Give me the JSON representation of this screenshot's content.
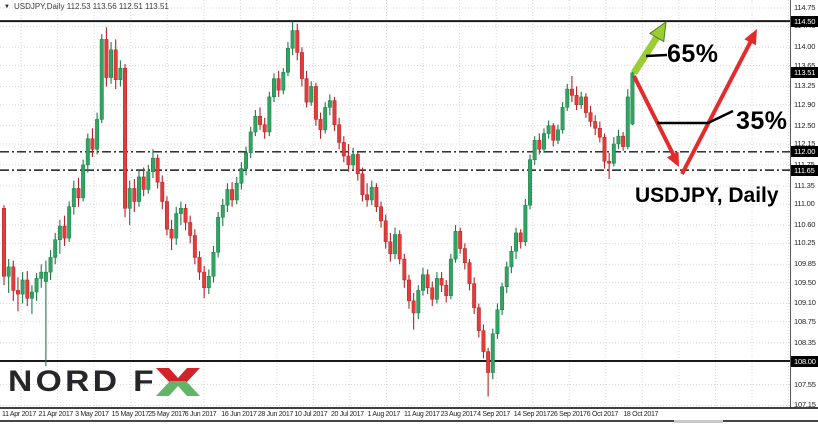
{
  "header": {
    "collapse_icon": "▼",
    "title_text": "USDJPY,Daily  112.53 113.56 112.51 113.51"
  },
  "colors": {
    "bull": "#2fa463",
    "bull_edge": "#1e7a46",
    "bear": "#e43b3b",
    "bear_edge": "#b32424",
    "grid": "#d9d9d9",
    "level_line": "#1a1a1a",
    "box_bg": "#000000",
    "box_text": "#ffffff",
    "bull_arrow": "#9acd32",
    "bull_arrow_edge": "#4e7d1e",
    "bear_arrow": "#e32b2b",
    "annotation": "#000000"
  },
  "annotations": {
    "up_percent": "65%",
    "down_percent": "35%",
    "chart_label": "USDJPY, Daily"
  },
  "logo": {
    "text_main": "NORD F",
    "text_x": "X",
    "red": "#d2232a",
    "green": "#62b566"
  },
  "chart_data": {
    "type": "candlestick",
    "symbol": "USDJPY",
    "timeframe": "Daily",
    "title": "USDJPY, Daily",
    "last_bar": {
      "open": 112.53,
      "high": 113.56,
      "low": 112.51,
      "close": 113.51
    },
    "current_price": 113.51,
    "y_range": [
      107.0,
      114.9
    ],
    "grid": true,
    "y_axis_labels": [
      114.75,
      114.4,
      114.0,
      113.65,
      113.25,
      112.9,
      112.5,
      112.15,
      111.75,
      111.35,
      111.0,
      110.6,
      110.25,
      109.85,
      109.5,
      109.1,
      108.75,
      108.35,
      107.55,
      107.15
    ],
    "x_axis_labels": [
      "11 Apr 2017",
      "21 Apr 2017",
      "3 May 2017",
      "15 May 2017",
      "25 May 2017",
      "6 Jun 2017",
      "16 Jun 2017",
      "28 Jun 2017",
      "10 Jul 2017",
      "20 Jul 2017",
      "1 Aug 2017",
      "11 Aug 2017",
      "23 Aug 2017",
      "4 Sep 2017",
      "14 Sep 2017",
      "26 Sep 2017",
      "6 Oct 2017",
      "18 Oct 2017"
    ],
    "price_lines": [
      {
        "price": 114.5,
        "label": "114.50",
        "style": "solid"
      },
      {
        "price": 113.51,
        "label": "113.51",
        "style": "none"
      },
      {
        "price": 112.0,
        "label": "112.00",
        "style": "dashdot"
      },
      {
        "price": 111.65,
        "label": "111.65",
        "style": "dashdot"
      },
      {
        "price": 108.0,
        "label": "108.00",
        "style": "solid"
      }
    ],
    "candles": [
      [
        110.92,
        110.98,
        109.45,
        109.62
      ],
      [
        109.62,
        109.95,
        109.3,
        109.8
      ],
      [
        109.8,
        109.92,
        109.15,
        109.35
      ],
      [
        109.35,
        109.6,
        108.95,
        109.28
      ],
      [
        109.28,
        109.7,
        109.1,
        109.55
      ],
      [
        109.55,
        109.72,
        109.05,
        109.2
      ],
      [
        109.2,
        109.45,
        108.9,
        109.32
      ],
      [
        109.32,
        109.68,
        109.15,
        109.58
      ],
      [
        109.58,
        109.85,
        109.4,
        109.7
      ],
      [
        109.52,
        109.92,
        107.9,
        109.7
      ],
      [
        109.7,
        110.12,
        109.55,
        109.98
      ],
      [
        109.98,
        110.45,
        109.85,
        110.32
      ],
      [
        110.32,
        110.7,
        110.05,
        110.58
      ],
      [
        110.58,
        110.78,
        110.2,
        110.35
      ],
      [
        110.35,
        111.05,
        110.28,
        110.95
      ],
      [
        110.95,
        111.45,
        110.8,
        111.3
      ],
      [
        111.3,
        111.5,
        110.95,
        111.12
      ],
      [
        111.12,
        111.85,
        111.05,
        111.75
      ],
      [
        111.75,
        112.35,
        111.6,
        112.25
      ],
      [
        112.25,
        112.45,
        111.9,
        112.05
      ],
      [
        112.05,
        112.75,
        111.95,
        112.62
      ],
      [
        112.62,
        114.25,
        112.55,
        114.15
      ],
      [
        114.15,
        114.38,
        113.25,
        113.42
      ],
      [
        113.42,
        114.1,
        113.3,
        113.95
      ],
      [
        113.95,
        114.15,
        113.2,
        113.38
      ],
      [
        113.38,
        113.75,
        113.25,
        113.6
      ],
      [
        113.6,
        113.68,
        110.75,
        110.92
      ],
      [
        110.92,
        111.45,
        110.6,
        111.3
      ],
      [
        111.3,
        111.48,
        110.85,
        111.05
      ],
      [
        111.05,
        111.65,
        110.95,
        111.52
      ],
      [
        111.52,
        111.7,
        111.15,
        111.28
      ],
      [
        111.28,
        111.75,
        111.2,
        111.62
      ],
      [
        111.62,
        112.05,
        111.5,
        111.88
      ],
      [
        111.88,
        111.95,
        111.3,
        111.42
      ],
      [
        111.42,
        111.55,
        110.9,
        111.05
      ],
      [
        111.05,
        111.15,
        110.4,
        110.52
      ],
      [
        110.52,
        110.7,
        110.12,
        110.35
      ],
      [
        110.35,
        110.95,
        110.22,
        110.82
      ],
      [
        110.82,
        111.05,
        110.6,
        110.92
      ],
      [
        110.92,
        111.0,
        110.5,
        110.65
      ],
      [
        110.65,
        110.78,
        110.25,
        110.4
      ],
      [
        110.4,
        110.52,
        109.85,
        109.98
      ],
      [
        109.98,
        110.1,
        109.55,
        109.7
      ],
      [
        109.7,
        109.82,
        109.2,
        109.4
      ],
      [
        109.4,
        109.75,
        109.28,
        109.62
      ],
      [
        109.62,
        110.2,
        109.5,
        110.08
      ],
      [
        110.08,
        110.85,
        109.98,
        110.75
      ],
      [
        110.75,
        111.1,
        110.58,
        110.98
      ],
      [
        110.98,
        111.4,
        110.85,
        111.28
      ],
      [
        111.28,
        111.42,
        110.95,
        111.08
      ],
      [
        111.08,
        111.52,
        111.0,
        111.4
      ],
      [
        111.4,
        111.8,
        111.28,
        111.68
      ],
      [
        111.68,
        112.1,
        111.55,
        111.98
      ],
      [
        111.98,
        112.48,
        111.88,
        112.38
      ],
      [
        112.38,
        112.8,
        112.3,
        112.68
      ],
      [
        112.68,
        112.85,
        112.42,
        112.52
      ],
      [
        112.52,
        112.65,
        112.25,
        112.38
      ],
      [
        112.38,
        113.15,
        112.3,
        113.05
      ],
      [
        113.05,
        113.5,
        112.95,
        113.4
      ],
      [
        113.4,
        113.55,
        113.05,
        113.18
      ],
      [
        113.18,
        113.6,
        113.1,
        113.52
      ],
      [
        113.52,
        114.1,
        113.45,
        113.98
      ],
      [
        113.98,
        114.49,
        113.85,
        114.32
      ],
      [
        114.32,
        114.45,
        113.75,
        113.9
      ],
      [
        113.9,
        114.0,
        113.25,
        113.4
      ],
      [
        113.4,
        113.55,
        112.85,
        112.95
      ],
      [
        112.95,
        113.35,
        112.88,
        113.25
      ],
      [
        113.25,
        113.32,
        112.5,
        112.62
      ],
      [
        112.62,
        112.75,
        112.25,
        112.42
      ],
      [
        112.42,
        112.95,
        112.35,
        112.85
      ],
      [
        112.85,
        113.1,
        112.7,
        112.98
      ],
      [
        112.98,
        113.05,
        112.4,
        112.52
      ],
      [
        112.52,
        112.65,
        112.05,
        112.18
      ],
      [
        112.18,
        112.3,
        111.8,
        111.92
      ],
      [
        111.92,
        112.15,
        111.62,
        111.75
      ],
      [
        111.75,
        112.08,
        111.65,
        111.95
      ],
      [
        111.95,
        112.0,
        111.45,
        111.58
      ],
      [
        111.58,
        111.7,
        111.05,
        111.18
      ],
      [
        111.18,
        111.4,
        110.95,
        111.08
      ],
      [
        111.08,
        111.45,
        110.98,
        111.32
      ],
      [
        111.32,
        111.4,
        110.85,
        110.95
      ],
      [
        110.95,
        111.05,
        110.55,
        110.68
      ],
      [
        110.68,
        110.8,
        110.15,
        110.28
      ],
      [
        110.28,
        110.45,
        109.9,
        110.05
      ],
      [
        110.05,
        110.55,
        109.95,
        110.42
      ],
      [
        110.42,
        110.5,
        109.85,
        109.95
      ],
      [
        109.95,
        110.05,
        109.4,
        109.55
      ],
      [
        109.55,
        109.65,
        109.0,
        109.15
      ],
      [
        109.15,
        109.3,
        108.6,
        108.92
      ],
      [
        108.92,
        109.45,
        108.8,
        109.35
      ],
      [
        109.35,
        109.78,
        109.25,
        109.65
      ],
      [
        109.65,
        109.75,
        109.28,
        109.4
      ],
      [
        109.4,
        109.52,
        109.05,
        109.18
      ],
      [
        109.18,
        109.7,
        109.1,
        109.58
      ],
      [
        109.58,
        109.7,
        109.32,
        109.45
      ],
      [
        109.45,
        109.55,
        109.12,
        109.25
      ],
      [
        109.25,
        110.05,
        109.18,
        109.95
      ],
      [
        109.95,
        110.6,
        109.88,
        110.48
      ],
      [
        110.48,
        110.55,
        110.05,
        110.15
      ],
      [
        110.15,
        110.25,
        109.75,
        109.88
      ],
      [
        109.88,
        109.95,
        109.35,
        109.48
      ],
      [
        109.48,
        109.6,
        108.9,
        109.02
      ],
      [
        109.02,
        109.1,
        108.45,
        108.58
      ],
      [
        108.58,
        108.7,
        108.05,
        108.18
      ],
      [
        108.18,
        108.25,
        107.32,
        107.78
      ],
      [
        107.78,
        108.62,
        107.65,
        108.52
      ],
      [
        108.52,
        109.1,
        108.42,
        108.98
      ],
      [
        108.98,
        109.5,
        108.88,
        109.42
      ],
      [
        109.42,
        109.9,
        109.3,
        109.8
      ],
      [
        109.8,
        110.2,
        109.68,
        110.1
      ],
      [
        110.1,
        110.55,
        109.95,
        110.45
      ],
      [
        110.45,
        110.52,
        110.15,
        110.28
      ],
      [
        110.28,
        111.1,
        110.2,
        110.98
      ],
      [
        110.98,
        111.95,
        110.9,
        111.85
      ],
      [
        111.85,
        112.3,
        111.75,
        112.22
      ],
      [
        112.22,
        112.35,
        111.95,
        112.05
      ],
      [
        112.05,
        112.45,
        111.98,
        112.35
      ],
      [
        112.35,
        112.6,
        112.25,
        112.5
      ],
      [
        112.5,
        112.55,
        112.1,
        112.22
      ],
      [
        112.22,
        112.52,
        112.15,
        112.42
      ],
      [
        112.42,
        112.95,
        112.35,
        112.85
      ],
      [
        112.85,
        113.3,
        112.78,
        113.2
      ],
      [
        113.2,
        113.45,
        112.95,
        113.08
      ],
      [
        113.08,
        113.25,
        112.8,
        112.9
      ],
      [
        112.9,
        113.15,
        112.82,
        113.05
      ],
      [
        113.05,
        113.12,
        112.65,
        112.75
      ],
      [
        112.75,
        112.88,
        112.48,
        112.58
      ],
      [
        112.58,
        112.7,
        112.32,
        112.45
      ],
      [
        112.45,
        112.58,
        112.18,
        112.28
      ],
      [
        112.28,
        112.35,
        111.68,
        111.82
      ],
      [
        111.82,
        111.98,
        111.48,
        111.78
      ],
      [
        111.78,
        112.28,
        111.72,
        112.15
      ],
      [
        112.15,
        112.42,
        112.05,
        112.3
      ],
      [
        112.3,
        112.38,
        112.02,
        112.1
      ],
      [
        112.1,
        113.2,
        112.05,
        113.05
      ],
      [
        112.53,
        113.56,
        112.51,
        113.51
      ]
    ]
  }
}
